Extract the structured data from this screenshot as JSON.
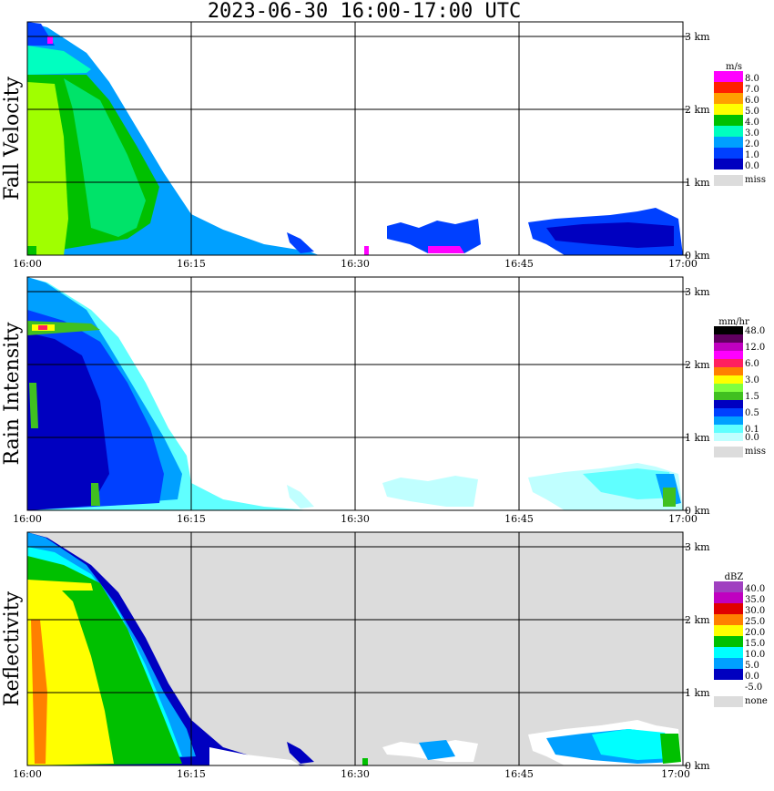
{
  "title": "2023-06-30  16:00-17:00 UTC",
  "colors": {
    "grid": "#000000",
    "missing_background": "#dcdcdc",
    "panel_background": "#ffffff"
  },
  "chart_data": [
    {
      "type": "heatmap",
      "title": "",
      "ylabel": "Fall Velocity",
      "x_ticks": [
        "16:00",
        "16:15",
        "16:30",
        "16:45",
        "17:00"
      ],
      "y_ticks": [
        "0 km",
        "1 km",
        "2 km",
        "3 km"
      ],
      "xlim": [
        "16:00",
        "17:00"
      ],
      "ylim_km": [
        0,
        3.2
      ],
      "grid": true,
      "background": "white",
      "legend": {
        "position": "right",
        "unit": "m/s",
        "levels": [
          {
            "label": "8.0",
            "color": "#ff00ff"
          },
          {
            "label": "7.0",
            "color": "#ff2000"
          },
          {
            "label": "6.0",
            "color": "#ffa000"
          },
          {
            "label": "5.0",
            "color": "#ffff00"
          },
          {
            "label": "4.0",
            "color": "#00c000"
          },
          {
            "label": "3.0",
            "color": "#00ffc0"
          },
          {
            "label": "2.0",
            "color": "#00a0ff"
          },
          {
            "label": "1.0",
            "color": "#0040ff"
          },
          {
            "label": "0.0",
            "color": "#0000c0"
          }
        ],
        "missing_label": "miss"
      }
    },
    {
      "type": "heatmap",
      "title": "",
      "ylabel": "Rain Intensity",
      "x_ticks": [
        "16:00",
        "16:15",
        "16:30",
        "16:45",
        "17:00"
      ],
      "y_ticks": [
        "0 km",
        "1 km",
        "2 km",
        "3 km"
      ],
      "xlim": [
        "16:00",
        "17:00"
      ],
      "ylim_km": [
        0,
        3.2
      ],
      "grid": true,
      "background": "white",
      "legend": {
        "position": "right",
        "unit": "mm/hr",
        "levels": [
          {
            "label": "48.0",
            "color": "#000000"
          },
          {
            "label": "",
            "color": "#600060"
          },
          {
            "label": "12.0",
            "color": "#c000c0"
          },
          {
            "label": "",
            "color": "#ff00ff"
          },
          {
            "label": "6.0",
            "color": "#ff2060"
          },
          {
            "label": "",
            "color": "#ff8000"
          },
          {
            "label": "3.0",
            "color": "#ffff00"
          },
          {
            "label": "",
            "color": "#80ff40"
          },
          {
            "label": "1.5",
            "color": "#40c020"
          },
          {
            "label": "",
            "color": "#0000c0"
          },
          {
            "label": "0.5",
            "color": "#0040ff"
          },
          {
            "label": "",
            "color": "#00a0ff"
          },
          {
            "label": "0.1",
            "color": "#60ffff"
          },
          {
            "label": "0.0",
            "color": "#c0ffff"
          }
        ],
        "missing_label": "miss"
      }
    },
    {
      "type": "heatmap",
      "title": "",
      "ylabel": "Reflectivity",
      "x_ticks": [
        "16:00",
        "16:15",
        "16:30",
        "16:45",
        "17:00"
      ],
      "y_ticks": [
        "0 km",
        "1 km",
        "2 km",
        "3 km"
      ],
      "xlim": [
        "16:00",
        "17:00"
      ],
      "ylim_km": [
        0,
        3.2
      ],
      "grid": true,
      "background": "grey",
      "legend": {
        "position": "right",
        "unit": "dBZ",
        "levels": [
          {
            "label": "40.0",
            "color": "#a040c0"
          },
          {
            "label": "35.0",
            "color": "#c000c0"
          },
          {
            "label": "30.0",
            "color": "#e00000"
          },
          {
            "label": "25.0",
            "color": "#ff8000"
          },
          {
            "label": "20.0",
            "color": "#ffff00"
          },
          {
            "label": "15.0",
            "color": "#00c000"
          },
          {
            "label": "10.0",
            "color": "#00ffff"
          },
          {
            "label": "5.0",
            "color": "#00a0ff"
          },
          {
            "label": "0.0",
            "color": "#0000c0"
          },
          {
            "label": "-5.0",
            "color": "#ffffff"
          }
        ],
        "missing_label": "none"
      }
    }
  ]
}
